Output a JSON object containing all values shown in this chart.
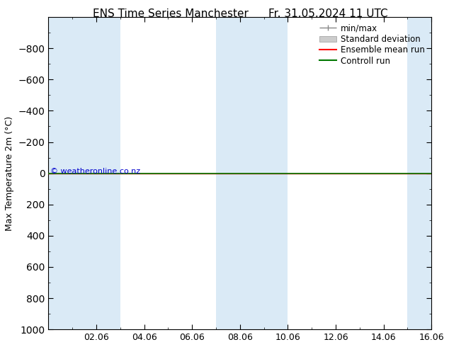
{
  "title_left": "ENS Time Series Manchester",
  "title_right": "Fr. 31.05.2024 11 UTC",
  "ylabel": "Max Temperature 2m (°C)",
  "ylim": [
    -1000,
    1000
  ],
  "yticks": [
    -800,
    -600,
    -400,
    -200,
    0,
    200,
    400,
    600,
    800,
    1000
  ],
  "xtick_labels": [
    "02.06",
    "04.06",
    "06.06",
    "08.06",
    "10.06",
    "12.06",
    "14.06",
    "16.06"
  ],
  "xtick_positions": [
    2,
    4,
    6,
    8,
    10,
    12,
    14,
    16
  ],
  "xlim": [
    0,
    16
  ],
  "shaded_bands": [
    {
      "x_start": 0,
      "x_end": 1,
      "color": "#daeaf6"
    },
    {
      "x_start": 1,
      "x_end": 3,
      "color": "#daeaf6"
    },
    {
      "x_start": 7,
      "x_end": 10,
      "color": "#daeaf6"
    },
    {
      "x_start": 15,
      "x_end": 16,
      "color": "#daeaf6"
    }
  ],
  "line_y": 0,
  "ensemble_mean_color": "#ff0000",
  "control_run_color": "#007700",
  "minmax_color": "#888888",
  "std_dev_color": "#cccccc",
  "watermark": "© weatheronline.co.nz",
  "watermark_color": "#0000cc",
  "background_color": "#ffffff",
  "legend_fontsize": 8.5,
  "axis_fontsize": 9,
  "title_fontsize": 11
}
